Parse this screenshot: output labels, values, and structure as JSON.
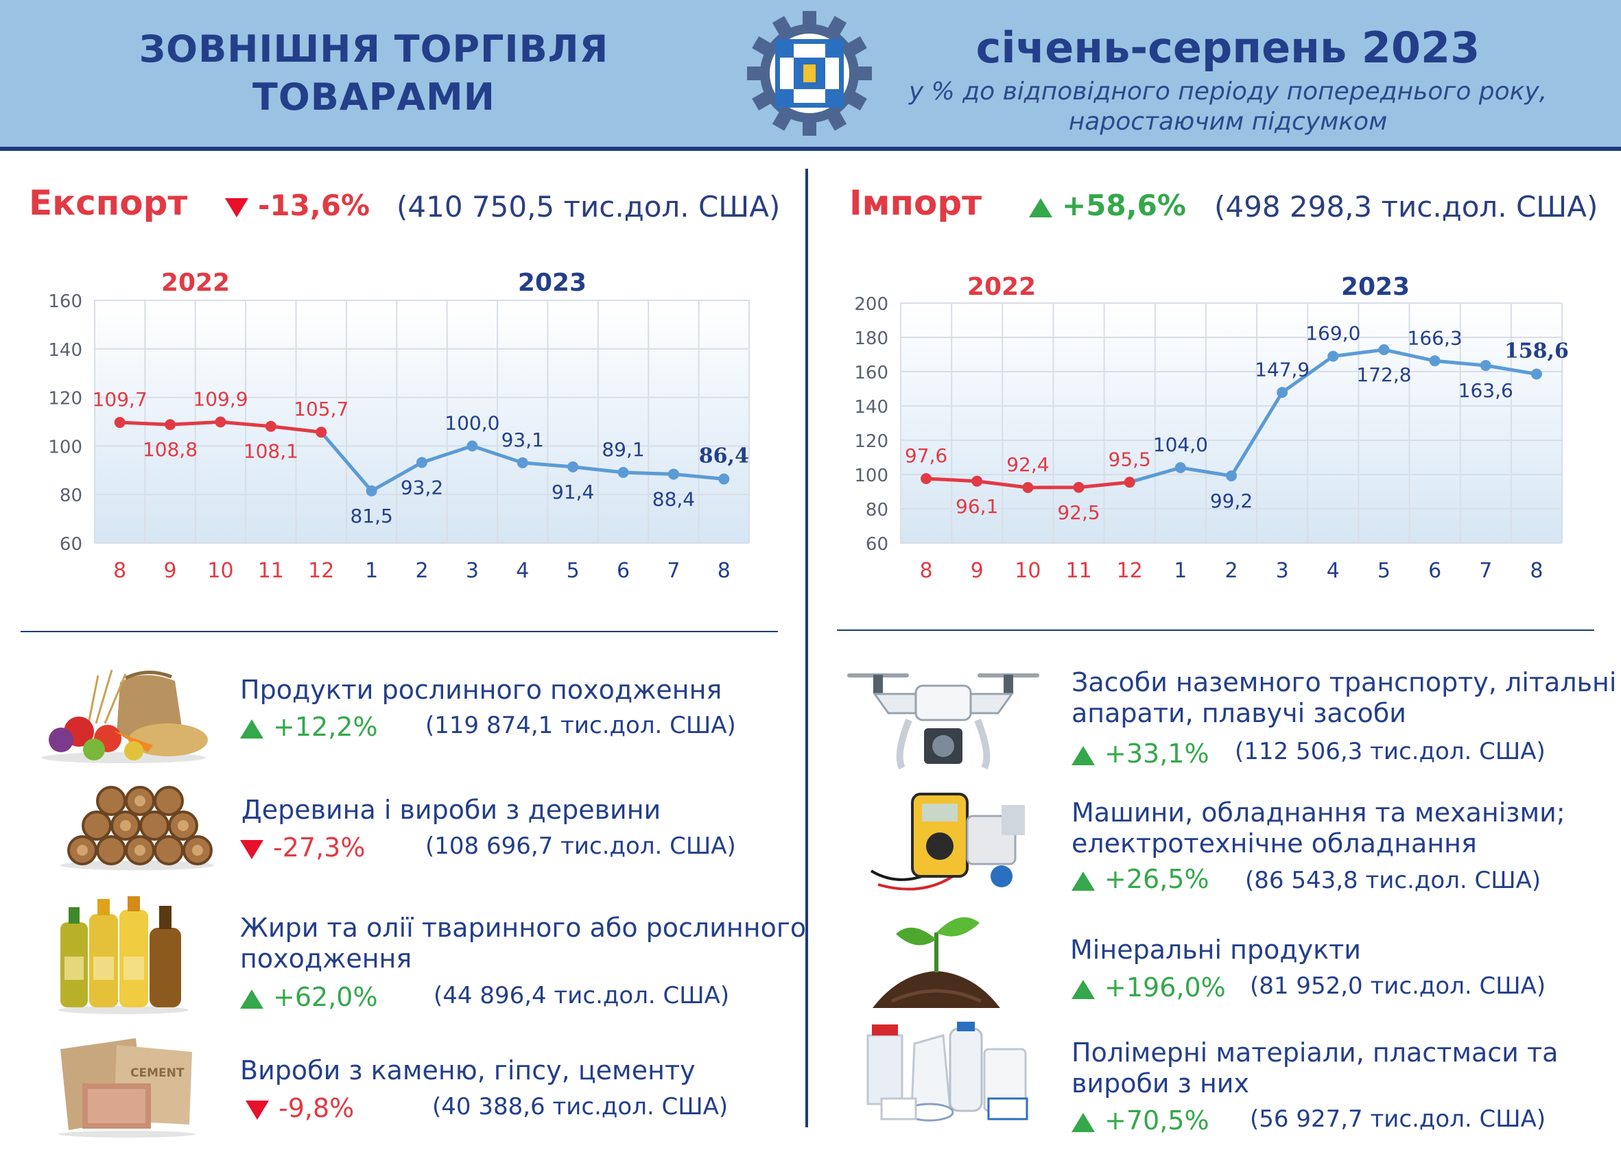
{
  "header": {
    "title_line1": "ЗОВНІШНЯ ТОРГІВЛЯ",
    "title_line2": "ТОВАРАМИ",
    "period": "січень-серпень 2023",
    "note_line1": "у % до відповідного періоду попереднього року,",
    "note_line2": "наростаючим підсумком"
  },
  "export": {
    "title": "Експорт",
    "change": "-13,6%",
    "direction": "down",
    "total": "(410 750,5 тис.дол. США)",
    "items": [
      {
        "name": [
          "Продукти рослинного походження"
        ],
        "change": "+12,2%",
        "direction": "up",
        "sum": "(119 874,1 тис.дол. США)",
        "icon": "vegetables-grain-icon"
      },
      {
        "name": [
          "Деревина і вироби з деревини"
        ],
        "change": "-27,3%",
        "direction": "down",
        "sum": "(108 696,7 тис.дол. США)",
        "icon": "firewood-logs-icon"
      },
      {
        "name": [
          "Жири та олії тваринного або рослинного",
          "походження"
        ],
        "change": "+62,0%",
        "direction": "up",
        "sum": "(44 896,4 тис.дол. США)",
        "icon": "oil-bottles-icon"
      },
      {
        "name": [
          "Вироби з каменю, гіпсу, цементу"
        ],
        "change": "-9,8%",
        "direction": "down",
        "sum": "(40 388,6 тис.дол. США)",
        "icon": "cement-bags-icon",
        "icon_text": "CEMENT"
      }
    ]
  },
  "import": {
    "title": "Імпорт",
    "change": "+58,6%",
    "direction": "up",
    "total": "(498 298,3 тис.дол. США)",
    "items": [
      {
        "name": [
          "Засоби наземного транспорту, літальні",
          "апарати, плавучі засоби"
        ],
        "change": "+33,1%",
        "direction": "up",
        "sum": "(112 506,3 тис.дол. США)",
        "icon": "drone-icon"
      },
      {
        "name": [
          "Машини, обладнання та механізми;",
          "електротехнічне обладнання"
        ],
        "change": "+26,5%",
        "direction": "up",
        "sum": "(86 543,8 тис.дол. США)",
        "icon": "multimeter-icon"
      },
      {
        "name": [
          "Мінеральні продукти"
        ],
        "change": "+196,0%",
        "direction": "up",
        "sum": "(81 952,0 тис.дол. США)",
        "icon": "sprout-soil-icon"
      },
      {
        "name": [
          "Полімерні матеріали, пластмаси та",
          "вироби з них"
        ],
        "change": "+70,5%",
        "direction": "up",
        "sum": "(56 927,7 тис.дол. США)",
        "icon": "plastic-containers-icon"
      }
    ]
  },
  "colors": {
    "header_bg": "#9ac2e2",
    "navy": "#233f8a",
    "red": "#e23a44",
    "green": "#34a84a",
    "line_blue": "#5b9bd5"
  },
  "chart_data": [
    {
      "type": "line",
      "section": "export",
      "year_labels": [
        "2022",
        "2023"
      ],
      "categories": [
        "8",
        "9",
        "10",
        "11",
        "12",
        "1",
        "2",
        "3",
        "4",
        "5",
        "6",
        "7",
        "8"
      ],
      "values": [
        109.7,
        108.8,
        109.9,
        108.1,
        105.7,
        81.5,
        93.2,
        100.0,
        93.1,
        91.4,
        89.1,
        88.4,
        86.4
      ],
      "labels": [
        "109,7",
        "108,8",
        "109,9",
        "108,1",
        "105,7",
        "81,5",
        "93,2",
        "100,0",
        "93,1",
        "91,4",
        "89,1",
        "88,4",
        "86,4"
      ],
      "label_pos": [
        "above",
        "below",
        "above",
        "below",
        "above",
        "below",
        "below",
        "above",
        "above",
        "below",
        "above",
        "below",
        "above"
      ],
      "segment_2022_points": 5,
      "ylim": [
        60,
        160
      ],
      "yticks": [
        "60",
        "80",
        "100",
        "120",
        "140",
        "160"
      ],
      "grid": true
    },
    {
      "type": "line",
      "section": "import",
      "year_labels": [
        "2022",
        "2023"
      ],
      "categories": [
        "8",
        "9",
        "10",
        "11",
        "12",
        "1",
        "2",
        "3",
        "4",
        "5",
        "6",
        "7",
        "8"
      ],
      "values": [
        97.6,
        96.1,
        92.4,
        92.5,
        95.5,
        104.0,
        99.2,
        147.9,
        169.0,
        172.8,
        166.3,
        163.6,
        158.6
      ],
      "labels": [
        "97,6",
        "96,1",
        "92,4",
        "92,5",
        "95,5",
        "104,0",
        "99,2",
        "147,9",
        "169,0",
        "172,8",
        "166,3",
        "163,6",
        "158,6"
      ],
      "label_pos": [
        "above",
        "below",
        "above",
        "below",
        "above",
        "above",
        "below",
        "above",
        "above",
        "below",
        "above",
        "below",
        "above"
      ],
      "segment_2022_points": 5,
      "ylim": [
        60,
        200
      ],
      "yticks": [
        "60",
        "80",
        "100",
        "120",
        "140",
        "160",
        "180",
        "200"
      ],
      "grid": true
    }
  ]
}
